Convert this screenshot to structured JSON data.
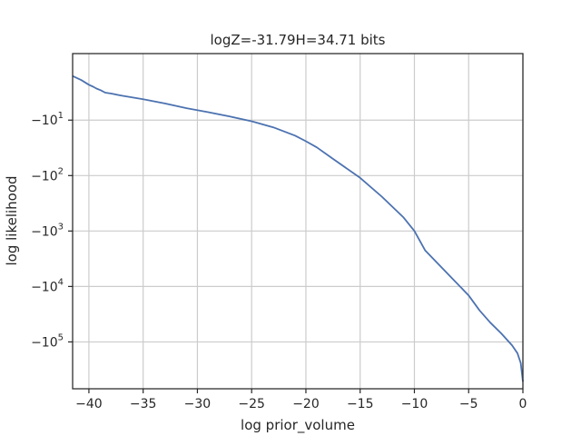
{
  "chart_data": {
    "type": "line",
    "title": "logZ=-31.79H=34.71 bits",
    "xlabel": "log prior_volume",
    "ylabel": "log likelihood",
    "xlim": [
      -41.5,
      0
    ],
    "y_scale": "symlog",
    "ylim": [
      -700000,
      -0.8
    ],
    "x_ticks": [
      {
        "value": -40,
        "label": "−40"
      },
      {
        "value": -35,
        "label": "−35"
      },
      {
        "value": -30,
        "label": "−30"
      },
      {
        "value": -25,
        "label": "−25"
      },
      {
        "value": -20,
        "label": "−20"
      },
      {
        "value": -15,
        "label": "−15"
      },
      {
        "value": -10,
        "label": "−10"
      },
      {
        "value": -5,
        "label": "−5"
      },
      {
        "value": 0,
        "label": "0"
      }
    ],
    "y_ticks": [
      {
        "value": -10,
        "base": "−10",
        "exp": "1"
      },
      {
        "value": -100,
        "base": "−10",
        "exp": "2"
      },
      {
        "value": -1000,
        "base": "−10",
        "exp": "3"
      },
      {
        "value": -10000,
        "base": "−10",
        "exp": "4"
      },
      {
        "value": -100000,
        "base": "−10",
        "exp": "5"
      }
    ],
    "grid": true,
    "series": [
      {
        "color": "#4c72b0",
        "x": [
          -41.5,
          -40.7,
          -40.0,
          -39.6,
          -39.3,
          -38.9,
          -38.5,
          -38.0,
          -37.0,
          -35.0,
          -33.0,
          -31.0,
          -29.0,
          -27.0,
          -25.0,
          -23.0,
          -21.0,
          -20.0,
          -19.0,
          -17.5,
          -15.0,
          -13.0,
          -11.0,
          -10.0,
          -9.0,
          -7.0,
          -5.0,
          -4.0,
          -3.0,
          -2.0,
          -1.0,
          -0.5,
          -0.2,
          0.0
        ],
        "y": [
          -1.6,
          -1.9,
          -2.3,
          -2.5,
          -2.7,
          -2.9,
          -3.2,
          -3.3,
          -3.6,
          -4.2,
          -5.0,
          -6.1,
          -7.2,
          -8.6,
          -10.5,
          -13.5,
          -19,
          -24,
          -31,
          -50,
          -110,
          -240,
          -570,
          -1000,
          -2250,
          -5700,
          -14500,
          -27000,
          -45000,
          -70000,
          -115000,
          -160000,
          -240000,
          -520000
        ]
      }
    ]
  }
}
